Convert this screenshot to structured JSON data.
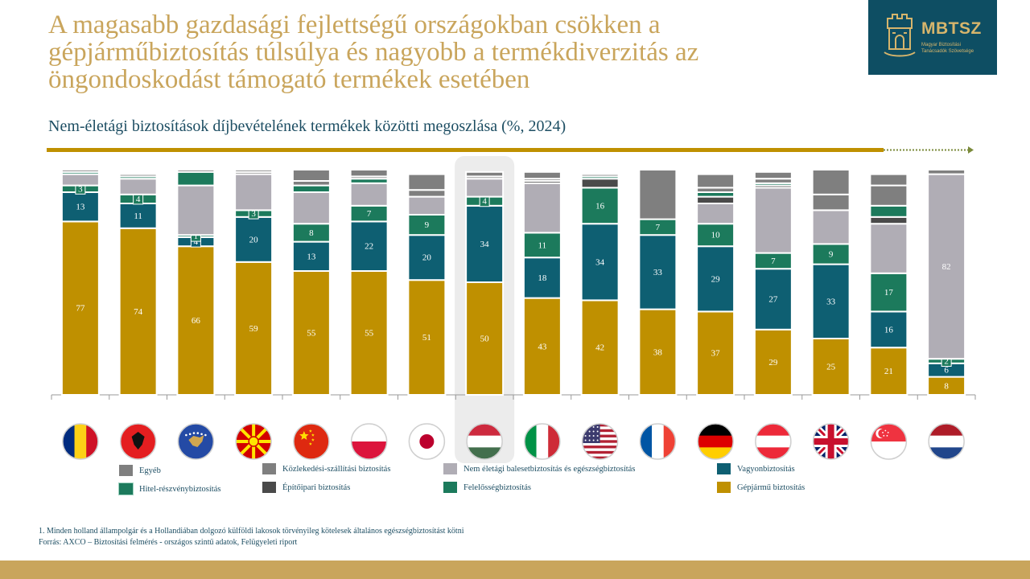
{
  "header": {
    "title": "A magasabb gazdasági fejlettségű országokban csökken a gépjárműbiztosítás túlsúlya és nagyobb a termékdiverzitás az öngondoskodást támogató termékek esetében",
    "subtitle": "Nem-életági biztosítások díjbevételének termékek közötti megoszlása (%,  2024)"
  },
  "logo": {
    "name": "MBTSZ",
    "tagline_1": "Magyar Biztosítási",
    "tagline_2": "Tanácsadók Szövetsége",
    "icon": "castle-tower-icon"
  },
  "footnotes": {
    "note": "1. Minden holland állampolgár és a Hollandiában dolgozó külföldi lakosok törvényileg kötelesek általános egészségbiztosítást kötni",
    "source": "Forrás: AXCO – Biztosítási felmérés - országos szintű adatok, Felügyeleti riport"
  },
  "legend": [
    {
      "key": "egyeb",
      "label": "Egyéb",
      "color": "#7f7f7f"
    },
    {
      "key": "kozlekedesi",
      "label": "Közlekedési-szállítási biztosítás",
      "color": "#7f7f7f"
    },
    {
      "key": "baleset",
      "label": "Nem életági balesetbiztosítás és egészségbiztosítás",
      "color": "#b0adb5"
    },
    {
      "key": "vagyon",
      "label": "Vagyonbiztosítás",
      "color": "#0e5f72"
    },
    {
      "key": "hitel",
      "label": "Hitel-részvénybiztosítás",
      "color": "#1c7a5c"
    },
    {
      "key": "epito",
      "label": "Építőipari biztosítás",
      "color": "#4a4a4a"
    },
    {
      "key": "felelosseg",
      "label": "Felelősségbiztosítás",
      "color": "#1c7a5c"
    },
    {
      "key": "gepjarmu",
      "label": "Gépjármű biztosítás",
      "color": "#bf9000"
    }
  ],
  "chart_data": {
    "type": "bar",
    "stacked": true,
    "ylim": [
      0,
      100
    ],
    "highlighted_category": "Magyarország",
    "categories": [
      "Románia",
      "Albánia",
      "Koszovó",
      "Észak-Macedónia",
      "Kína",
      "Lengyelország",
      "Japán",
      "Magyarország",
      "Olaszország",
      "USA",
      "Franciaország",
      "Németország",
      "Ausztria",
      "Egyesült Királyság",
      "Szingapúr",
      "Hollandia"
    ],
    "flag_icons": [
      "flag-romania-icon",
      "flag-albania-icon",
      "flag-kosovo-icon",
      "flag-north-macedonia-icon",
      "flag-china-icon",
      "flag-poland-icon",
      "flag-japan-icon",
      "flag-hungary-icon",
      "flag-italy-icon",
      "flag-usa-icon",
      "flag-france-icon",
      "flag-germany-icon",
      "flag-austria-icon",
      "flag-uk-icon",
      "flag-singapore-icon",
      "flag-netherlands-icon"
    ],
    "series": [
      {
        "key": "gepjarmu",
        "name": "Gépjármű biztosítás",
        "color": "#bf9000",
        "values": [
          77,
          74,
          66,
          59,
          55,
          55,
          51,
          50,
          43,
          42,
          38,
          37,
          29,
          25,
          21,
          8
        ]
      },
      {
        "key": "vagyon",
        "name": "Vagyonbiztosítás",
        "color": "#0e5f72",
        "values": [
          13,
          11,
          4,
          20,
          13,
          22,
          20,
          34,
          18,
          34,
          33,
          29,
          27,
          33,
          16,
          6
        ]
      },
      {
        "key": "felelosseg",
        "name": "Felelősségbiztosítás",
        "color": "#1c7a5c",
        "values": [
          3,
          4,
          1,
          3,
          8,
          7,
          9,
          4,
          11,
          16,
          7,
          10,
          7,
          9,
          17,
          2
        ]
      },
      {
        "key": "baleset",
        "name": "Nem életági balesetbiztosítás és egészségbiztosítás",
        "color": "#b0adb5",
        "values": [
          5,
          7,
          22,
          16,
          14,
          10,
          8,
          8,
          22,
          0,
          0,
          9,
          29,
          15,
          22,
          82
        ]
      },
      {
        "key": "epito",
        "name": "Építőipari biztosítás",
        "color": "#4a4a4a",
        "values": [
          0,
          0,
          0,
          0,
          0,
          0,
          0,
          0,
          1,
          4,
          0,
          3,
          1,
          0,
          3,
          0
        ]
      },
      {
        "key": "hitel",
        "name": "Hitel-részvénybiztosítás",
        "color": "#1c7a5c",
        "values": [
          1,
          1,
          6,
          0,
          3,
          2,
          0,
          0,
          0,
          1,
          0,
          2,
          1,
          0,
          5,
          0
        ]
      },
      {
        "key": "kozlekedesi",
        "name": "Közlekedési-szállítási biztosítás",
        "color": "#7f7f7f",
        "values": [
          0,
          0,
          0,
          1,
          2,
          1,
          3,
          1,
          1,
          0,
          0,
          2,
          2,
          7,
          9,
          0
        ]
      },
      {
        "key": "egyeb",
        "name": "Egyéb",
        "color": "#7f7f7f",
        "values": [
          1,
          1,
          1,
          1,
          5,
          3,
          7,
          2,
          3,
          1,
          22,
          6,
          3,
          11,
          5,
          2
        ]
      }
    ],
    "shown_labels": {
      "gepjarmu": "all",
      "vagyon": "all",
      "felelosseg": "all",
      "hitel": "none",
      "baleset": [
        0,
        0,
        0,
        0,
        0,
        0,
        0,
        0,
        0,
        0,
        0,
        0,
        0,
        0,
        0,
        1
      ]
    }
  }
}
